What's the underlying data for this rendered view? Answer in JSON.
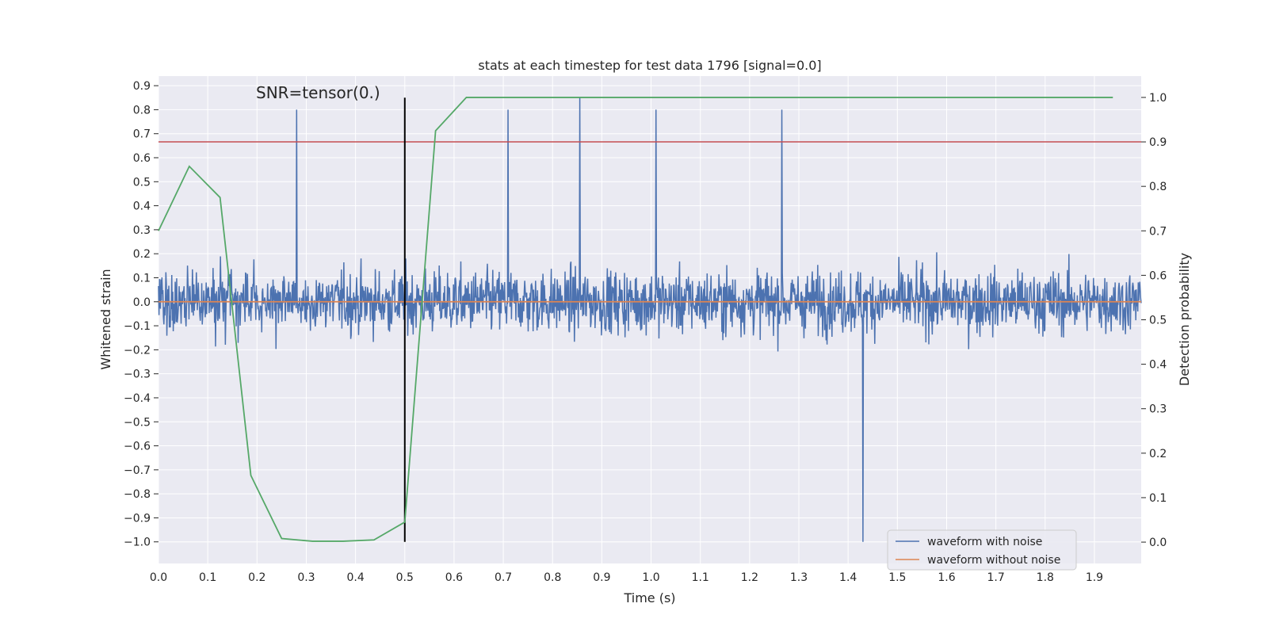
{
  "chart_data": {
    "type": "line",
    "title": "stats at each timestep for test data 1796 [signal=0.0]",
    "annotation": "SNR=tensor(0.)",
    "xlabel": "Time (s)",
    "ylabel_left": "Whitened strain",
    "ylabel_right": "Detection probability",
    "xlim": [
      0.0,
      1.995
    ],
    "ylim_left": [
      -1.09,
      0.94
    ],
    "ylim_right": [
      -0.048,
      1.048
    ],
    "x_ticks": [
      "0.0",
      "0.1",
      "0.2",
      "0.3",
      "0.4",
      "0.5",
      "0.6",
      "0.7",
      "0.8",
      "0.9",
      "1.0",
      "1.1",
      "1.2",
      "1.3",
      "1.4",
      "1.5",
      "1.6",
      "1.7",
      "1.8",
      "1.9"
    ],
    "y_ticks_left": [
      "0.9",
      "0.8",
      "0.7",
      "0.6",
      "0.5",
      "0.4",
      "0.3",
      "0.2",
      "0.1",
      "0.0",
      "−0.1",
      "−0.2",
      "−0.3",
      "−0.4",
      "−0.5",
      "−0.6",
      "−0.7",
      "−0.8",
      "−0.9",
      "−1.0"
    ],
    "y_ticks_right": [
      "1.0",
      "0.9",
      "0.8",
      "0.7",
      "0.6",
      "0.5",
      "0.4",
      "0.3",
      "0.2",
      "0.1",
      "0.0"
    ],
    "grid": true,
    "legend_position": "bottom-right",
    "legend": [
      "waveform with noise",
      "waveform without noise"
    ],
    "threshold_line": {
      "axis": "right",
      "y": 0.9,
      "color": "#c44e52"
    },
    "marker_line": {
      "x": 0.5,
      "y_range": [
        -1.0,
        0.85
      ],
      "color": "#000000"
    },
    "series": [
      {
        "name": "waveform with noise",
        "axis": "left",
        "color": "#4c72b0",
        "sample_count": 2000,
        "x_range": [
          0.0,
          1.995
        ],
        "amplitude_range": [
          -1.0,
          0.85
        ],
        "notable_peaks": [
          {
            "x": 0.28,
            "y": 0.8
          },
          {
            "x": 0.71,
            "y": 0.8
          },
          {
            "x": 0.855,
            "y": 0.85
          },
          {
            "x": 1.01,
            "y": 0.8
          },
          {
            "x": 1.265,
            "y": 0.8
          },
          {
            "x": 1.43,
            "y": -1.0
          }
        ]
      },
      {
        "name": "waveform without noise",
        "axis": "left",
        "color": "#dd8452",
        "x": [
          0.0,
          1.995
        ],
        "y": [
          0.0,
          0.0
        ]
      },
      {
        "name": "Detection probability",
        "axis": "right",
        "color": "#55a868",
        "x": [
          0.0,
          0.0625,
          0.125,
          0.1875,
          0.25,
          0.3125,
          0.375,
          0.4375,
          0.5,
          0.5625,
          0.625,
          0.6875,
          0.75,
          0.8125,
          0.875,
          0.9375,
          1.0,
          1.0625,
          1.125,
          1.1875,
          1.25,
          1.3125,
          1.375,
          1.4375,
          1.5,
          1.5625,
          1.625,
          1.6875,
          1.75,
          1.8125,
          1.875,
          1.9375
        ],
        "y": [
          0.7,
          0.845,
          0.775,
          0.15,
          0.008,
          0.002,
          0.002,
          0.005,
          0.045,
          0.925,
          1.0,
          1.0,
          1.0,
          1.0,
          1.0,
          1.0,
          1.0,
          1.0,
          1.0,
          1.0,
          1.0,
          1.0,
          1.0,
          1.0,
          1.0,
          1.0,
          1.0,
          1.0,
          1.0,
          1.0,
          1.0,
          1.0
        ]
      }
    ]
  }
}
